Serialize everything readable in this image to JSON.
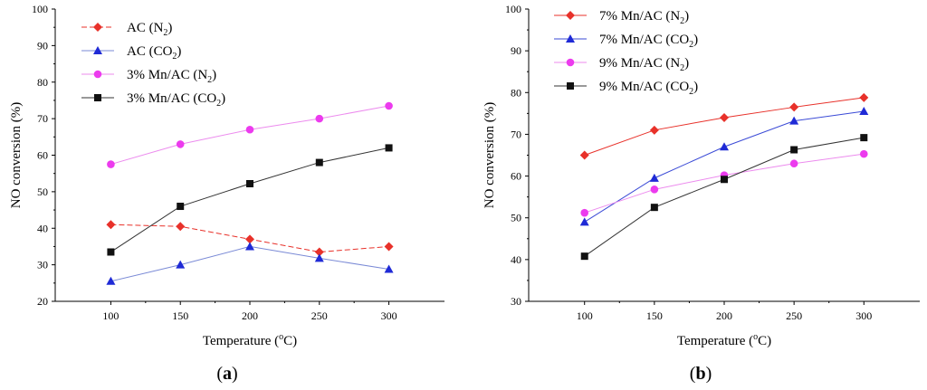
{
  "chart_data": [
    {
      "type": "line",
      "panel_label": "a",
      "xlabel": "Temperature (",
      "xlabel_sup": "o",
      "xlabel_end": "C)",
      "ylabel": "NO conversion (%)",
      "x": [
        100,
        150,
        200,
        250,
        300
      ],
      "xticks": [
        "100",
        "150",
        "200",
        "250",
        "300"
      ],
      "xlim": [
        60,
        340
      ],
      "ylim": [
        20,
        100
      ],
      "yticks": [
        "20",
        "30",
        "40",
        "50",
        "60",
        "70",
        "80",
        "90",
        "100"
      ],
      "legend_position": "top-left",
      "series": [
        {
          "name": "AC (N",
          "sub": "2",
          "tail": ")",
          "color": "#e8312a",
          "line_color": "#e8312a",
          "marker": "diamond",
          "dashed": true,
          "values": [
            41.0,
            40.5,
            37.0,
            33.5,
            35.0
          ]
        },
        {
          "name": "AC (CO",
          "sub": "2",
          "tail": ")",
          "color": "#1f2ad6",
          "line_color": "#7a8ad6",
          "marker": "triangle",
          "dashed": false,
          "values": [
            25.5,
            30.0,
            35.0,
            31.8,
            28.8
          ]
        },
        {
          "name": "3% Mn/AC (N",
          "sub": "2",
          "tail": ")",
          "color": "#ec3bee",
          "line_color": "#ec8bee",
          "marker": "circle",
          "dashed": false,
          "values": [
            57.5,
            63.0,
            67.0,
            70.0,
            73.5
          ]
        },
        {
          "name": "3% Mn/AC (CO",
          "sub": "2",
          "tail": ")",
          "color": "#111111",
          "line_color": "#333333",
          "marker": "square",
          "dashed": false,
          "values": [
            33.5,
            46.0,
            52.2,
            58.0,
            62.0
          ]
        }
      ]
    },
    {
      "type": "line",
      "panel_label": "b",
      "xlabel": "Temperature (",
      "xlabel_sup": "o",
      "xlabel_end": "C)",
      "ylabel": "NO conversion (%)",
      "x": [
        100,
        150,
        200,
        250,
        300
      ],
      "xticks": [
        "100",
        "150",
        "200",
        "250",
        "300"
      ],
      "xlim": [
        60,
        340
      ],
      "ylim": [
        30,
        100
      ],
      "yticks": [
        "30",
        "40",
        "50",
        "60",
        "70",
        "80",
        "90",
        "100"
      ],
      "legend_position": "top-left",
      "series": [
        {
          "name": "7% Mn/AC (N",
          "sub": "2",
          "tail": ")",
          "color": "#e8312a",
          "line_color": "#e8312a",
          "marker": "diamond",
          "dashed": false,
          "values": [
            65.0,
            71.0,
            74.0,
            76.5,
            78.8
          ]
        },
        {
          "name": "7% Mn/AC (CO",
          "sub": "2",
          "tail": ")",
          "color": "#1f2ad6",
          "line_color": "#3a4ad6",
          "marker": "triangle",
          "dashed": false,
          "values": [
            49.0,
            59.5,
            67.0,
            73.2,
            75.5
          ]
        },
        {
          "name": "9% Mn/AC (N",
          "sub": "2",
          "tail": ")",
          "color": "#ec3bee",
          "line_color": "#ec8bee",
          "marker": "circle",
          "dashed": false,
          "values": [
            51.2,
            56.8,
            60.2,
            63.0,
            65.3
          ]
        },
        {
          "name": "9% Mn/AC (CO",
          "sub": "2",
          "tail": ")",
          "color": "#111111",
          "line_color": "#333333",
          "marker": "square",
          "dashed": false,
          "values": [
            40.8,
            52.5,
            59.2,
            66.3,
            69.2
          ]
        }
      ]
    }
  ]
}
